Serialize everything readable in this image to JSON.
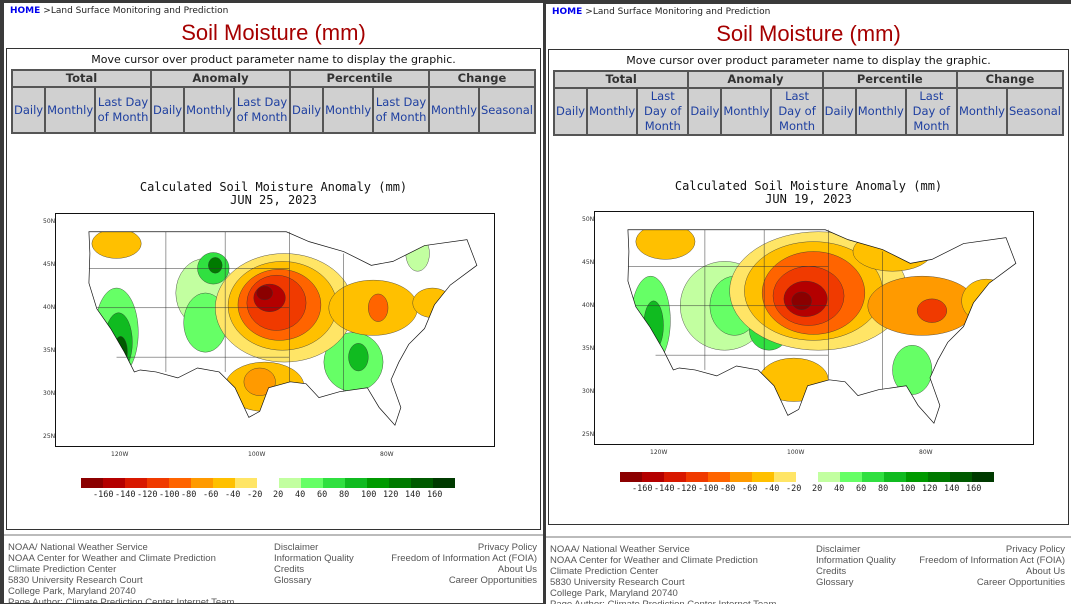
{
  "panels": [
    {
      "breadcrumb": {
        "home": "HOME",
        "path": ">Land Surface Monitoring and Prediction"
      },
      "title": "Soil Moisture (mm)",
      "hint": "Move cursor over product parameter name to display the graphic.",
      "nav": {
        "groups": [
          "Total",
          "Anomaly",
          "Percentile",
          "Change"
        ],
        "links": [
          [
            "Daily",
            "Monthly",
            "Last Day of Month"
          ],
          [
            "Daily",
            "Monthly",
            "Last Day of Month"
          ],
          [
            "Daily",
            "Monthly",
            "Last Day of Month"
          ],
          [
            "Monthly",
            "Seasonal"
          ]
        ]
      },
      "map": {
        "title": "Calculated Soil Moisture Anomaly (mm)",
        "date": "JUN 25, 2023"
      },
      "footer": {
        "col1": [
          "NOAA/ National Weather Service",
          "NOAA Center for Weather and Climate Prediction",
          "Climate Prediction Center",
          "5830 University Research Court",
          "College Park, Maryland 20740",
          "Page Author: Climate Prediction Center Internet Team"
        ],
        "col2": [
          "Disclaimer",
          "Information Quality",
          "Credits",
          "Glossary"
        ],
        "col3": [
          "Privacy Policy",
          "Freedom of Information Act (FOIA)",
          "About Us",
          "Career Opportunities"
        ]
      }
    },
    {
      "breadcrumb": {
        "home": "HOME",
        "path": ">Land Surface Monitoring and Prediction"
      },
      "title": "Soil Moisture (mm)",
      "hint": "Move cursor over product parameter name to display the graphic.",
      "nav": {
        "groups": [
          "Total",
          "Anomaly",
          "Percentile",
          "Change"
        ],
        "links": [
          [
            "Daily",
            "Monthly",
            "Last Day of Month"
          ],
          [
            "Daily",
            "Monthly",
            "Last Day of Month"
          ],
          [
            "Daily",
            "Monthly",
            "Last Day of Month"
          ],
          [
            "Monthly",
            "Seasonal"
          ]
        ]
      },
      "map": {
        "title": "Calculated Soil Moisture Anomaly (mm)",
        "date": "JUN 19, 2023"
      },
      "footer": {
        "col1": [
          "NOAA/ National Weather Service",
          "NOAA Center for Weather and Climate Prediction",
          "Climate Prediction Center",
          "5830 University Research Court",
          "College Park, Maryland 20740",
          "Page Author: Climate Prediction Center Internet Team"
        ],
        "col2": [
          "Disclaimer",
          "Information Quality",
          "Credits",
          "Glossary"
        ],
        "col3": [
          "Privacy Policy",
          "Freedom of Information Act (FOIA)",
          "About Us",
          "Career Opportunities"
        ]
      }
    }
  ],
  "map_axes": {
    "lat": [
      "50N",
      "45N",
      "40N",
      "35N",
      "30N",
      "25N"
    ],
    "lon": [
      "120W",
      "100W",
      "80W"
    ]
  },
  "legend": {
    "dry": {
      "labels": [
        "-160",
        "-140",
        "-120",
        "-100",
        "-80",
        "-60",
        "-40",
        "-20"
      ],
      "colors": [
        "#8b0000",
        "#b40000",
        "#d81800",
        "#f03a00",
        "#ff6400",
        "#ff9a00",
        "#ffc000",
        "#ffe566"
      ]
    },
    "wet": {
      "labels": [
        "20",
        "40",
        "60",
        "80",
        "100",
        "120",
        "140",
        "160"
      ],
      "colors": [
        "#c2ffa0",
        "#66ff66",
        "#30e040",
        "#10bb20",
        "#009a00",
        "#007a00",
        "#005a00",
        "#003a00"
      ]
    }
  },
  "colors": {
    "title": "#a50000",
    "link": "#1e3fa0",
    "home": "#0000ee"
  }
}
